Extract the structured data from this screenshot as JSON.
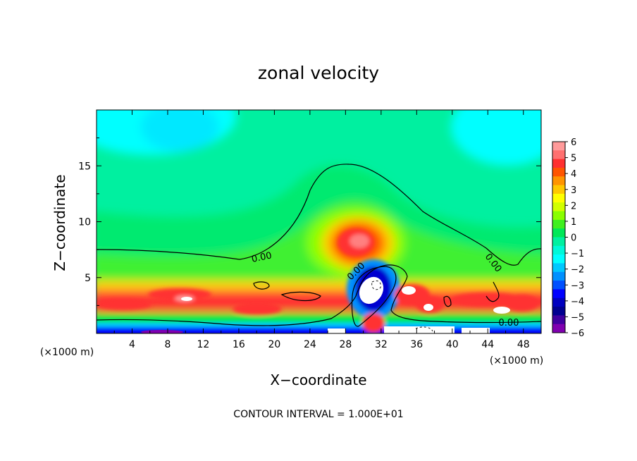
{
  "chart_data": {
    "type": "heatmap",
    "title": "zonal velocity",
    "xlabel": "X−coordinate",
    "ylabel": "Z−coordinate",
    "xunit": "(×1000 m)",
    "xlim": [
      0,
      50
    ],
    "ylim": [
      0,
      20
    ],
    "xticks": [
      4,
      8,
      12,
      16,
      20,
      24,
      28,
      32,
      36,
      40,
      44,
      48
    ],
    "yticks": [
      5,
      10,
      15
    ],
    "colorbar": {
      "ticks": [
        6,
        5,
        4,
        3,
        2,
        1,
        0,
        -1,
        -2,
        -3,
        -4,
        -5,
        -6
      ],
      "tick_labels": [
        "6",
        "5",
        "4",
        "3",
        "2",
        "1",
        "0",
        "−1",
        "−2",
        "−3",
        "−4",
        "−5",
        "−6"
      ],
      "colors": [
        "#ff9a9a",
        "#ff7070",
        "#ff3030",
        "#ff5500",
        "#ff9400",
        "#ffc800",
        "#ffff00",
        "#d2ff00",
        "#8aff00",
        "#40f020",
        "#00e858",
        "#00f0a0",
        "#00f8d8",
        "#00ffff",
        "#00c8ff",
        "#0090ff",
        "#0050ff",
        "#0000ff",
        "#0000c0",
        "#000090",
        "#4000a0",
        "#8000b0"
      ]
    },
    "contour_label": "0.00",
    "contour_interval_text": "CONTOUR INTERVAL = 1.000E+01",
    "field_features": [
      {
        "feature": "upper-level jet core",
        "x": 29,
        "z": 8,
        "value": 5
      },
      {
        "feature": "low-level jet",
        "x": 10,
        "z": 2.5,
        "value": 5
      },
      {
        "feature": "low-level jet",
        "x": 44,
        "z": 2.5,
        "value": 5
      },
      {
        "feature": "reverse flow lobe",
        "x": 30,
        "z": 3,
        "value": -5
      },
      {
        "feature": "surface easterlies",
        "x": 20,
        "z": 0.3,
        "value": -5
      },
      {
        "feature": "upper easterlies",
        "x": 6,
        "z": 18,
        "value": -2
      }
    ]
  }
}
